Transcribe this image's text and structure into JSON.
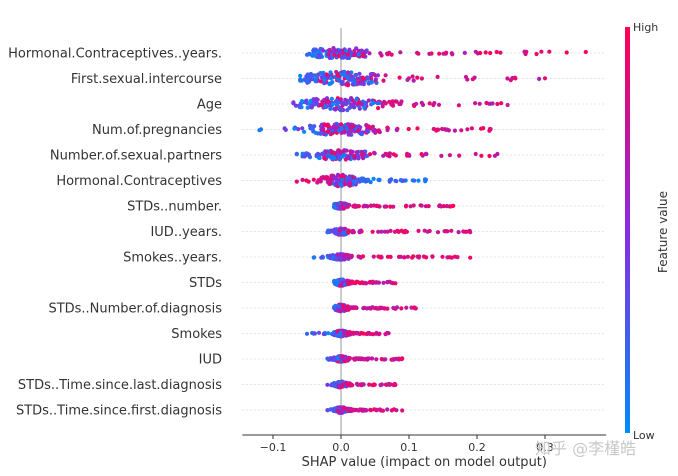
{
  "chart_data": {
    "type": "scatter",
    "subtype": "shap-beeswarm",
    "xlabel": "SHAP value (impact on model output)",
    "xlim": [
      -0.145,
      0.39
    ],
    "xticks": [
      {
        "value": -0.1,
        "label": "−0.1"
      },
      {
        "value": 0.0,
        "label": "0.0"
      },
      {
        "value": 0.1,
        "label": "0.1"
      },
      {
        "value": 0.2,
        "label": "0.2"
      },
      {
        "value": 0.3,
        "label": "0.3"
      }
    ],
    "features": [
      {
        "name": "Hormonal.Contraceptives..years.",
        "min": -0.05,
        "max": 0.36,
        "spread": 0.055,
        "height": 0.55,
        "highPos": true
      },
      {
        "name": "First.sexual.intercourse",
        "min": -0.06,
        "max": 0.3,
        "spread": 0.07,
        "height": 0.7,
        "highPos": true
      },
      {
        "name": "Age",
        "min": -0.07,
        "max": 0.245,
        "spread": 0.07,
        "height": 0.65,
        "highPos": true
      },
      {
        "name": "Num.of.pregnancies",
        "min": -0.12,
        "max": 0.22,
        "spread": 0.06,
        "height": 0.6,
        "highPos": true
      },
      {
        "name": "Number.of.sexual.partners",
        "min": -0.065,
        "max": 0.23,
        "spread": 0.05,
        "height": 0.5,
        "highPos": true
      },
      {
        "name": "Hormonal.Contraceptives",
        "min": -0.065,
        "max": 0.125,
        "spread": 0.03,
        "height": 0.6,
        "highPos": false
      },
      {
        "name": "STDs..number.",
        "min": -0.01,
        "max": 0.165,
        "spread": 0.012,
        "height": 0.3,
        "highPos": true
      },
      {
        "name": "IUD..years.",
        "min": -0.02,
        "max": 0.19,
        "spread": 0.012,
        "height": 0.35,
        "highPos": true
      },
      {
        "name": "Smokes..years.",
        "min": -0.04,
        "max": 0.19,
        "spread": 0.015,
        "height": 0.3,
        "highPos": true
      },
      {
        "name": "STDs",
        "min": -0.01,
        "max": 0.08,
        "spread": 0.01,
        "height": 0.35,
        "highPos": true
      },
      {
        "name": "STDs..Number.of.diagnosis",
        "min": -0.01,
        "max": 0.11,
        "spread": 0.01,
        "height": 0.35,
        "highPos": true
      },
      {
        "name": "Smokes",
        "min": -0.05,
        "max": 0.07,
        "spread": 0.012,
        "height": 0.3,
        "highPos": true
      },
      {
        "name": "IUD",
        "min": -0.02,
        "max": 0.09,
        "spread": 0.01,
        "height": 0.3,
        "highPos": true
      },
      {
        "name": "STDs..Time.since.last.diagnosis",
        "min": -0.02,
        "max": 0.08,
        "spread": 0.01,
        "height": 0.3,
        "highPos": true
      },
      {
        "name": "STDs..Time.since.first.diagnosis",
        "min": -0.02,
        "max": 0.09,
        "spread": 0.01,
        "height": 0.3,
        "highPos": true
      }
    ],
    "colorbar": {
      "title": "Feature value",
      "high_label": "High",
      "low_label": "Low",
      "high_color": "#ff0052",
      "mid_color": "#8a2be2",
      "low_color": "#008bfb"
    }
  },
  "watermark": "知乎 @李槿皓",
  "colors": {
    "zero_line": "#999999",
    "grid_dots": "#cccccc",
    "axis": "#333333"
  }
}
